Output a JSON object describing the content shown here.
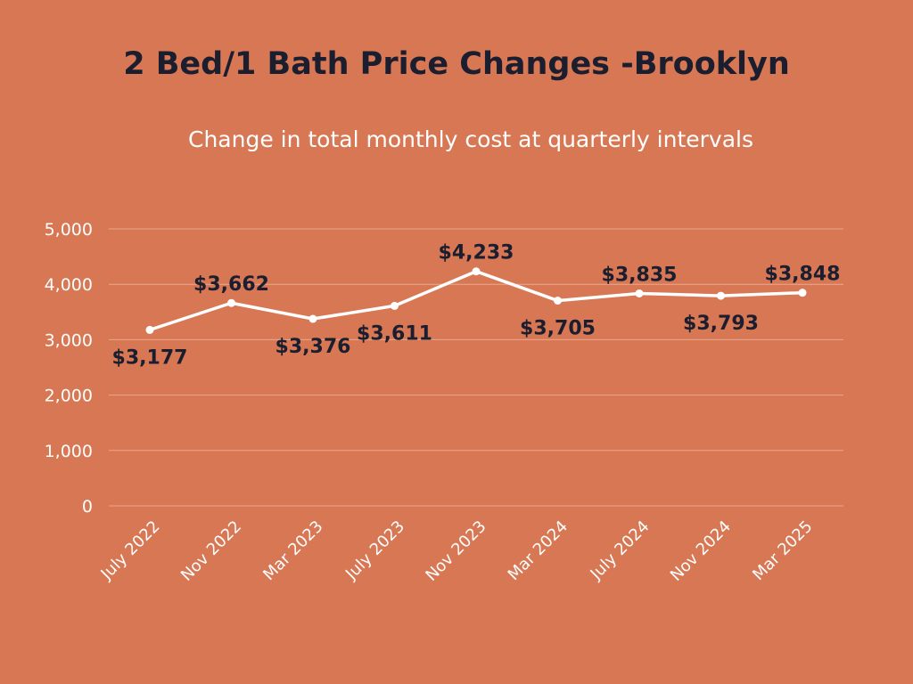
{
  "chart_data": {
    "type": "line",
    "title": "2 Bed/1 Bath Price Changes -Brooklyn",
    "subtitle": "Change in total monthly cost at quarterly intervals",
    "xlabel": "",
    "ylabel": "",
    "categories": [
      "July 2022",
      "Nov 2022",
      "Mar 2023",
      "July 2023",
      "Nov 2023",
      "Mar 2024",
      "July 2024",
      "Nov 2024",
      "Mar 2025"
    ],
    "values": [
      3177,
      3662,
      3376,
      3611,
      4233,
      3705,
      3835,
      3793,
      3848
    ],
    "data_labels": [
      "$3,177",
      "$3,662",
      "$3,376",
      "$3,611",
      "$4,233",
      "$3,705",
      "$3,835",
      "$3,793",
      "$3,848"
    ],
    "label_position": [
      "below",
      "above",
      "below",
      "below",
      "above",
      "below",
      "above",
      "below",
      "above"
    ],
    "ylim": [
      0,
      5000
    ],
    "yticks": [
      0,
      1000,
      2000,
      3000,
      4000,
      5000
    ],
    "ytick_labels": [
      "0",
      "1,000",
      "2,000",
      "3,000",
      "4,000",
      "5,000"
    ],
    "grid": true,
    "legend": "none"
  },
  "colors": {
    "background": "#D87754",
    "line": "#FFFFFF",
    "title": "#1B1E2E",
    "gridline": "#E9A88E"
  }
}
